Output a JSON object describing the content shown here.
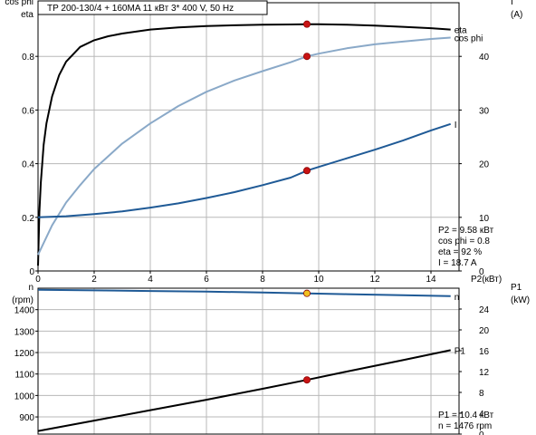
{
  "title": "TP 200-130/4 + 160MA    11 кВт   3* 400 V, 50 Hz",
  "colors": {
    "eta": "#000000",
    "cosphi": "#8aa9c8",
    "current": "#1f5a96",
    "speed": "#1f5a96",
    "p1": "#000000",
    "marker_red": "#c81414",
    "marker_yellow": "#f0c020",
    "grid": "#b8b8b8"
  },
  "chart_data": [
    {
      "type": "line",
      "name": "top",
      "x_unit_label": "P2(кВт)",
      "xlim": [
        0,
        15
      ],
      "x_ticks": [
        0,
        2,
        4,
        6,
        8,
        10,
        12,
        14
      ],
      "y_left_label_1": "cos phi",
      "y_left_label_2": "eta",
      "ylim_left": [
        0,
        1.0
      ],
      "y_left_ticks": [
        0,
        0.2,
        0.4,
        0.6,
        0.8
      ],
      "y_right_label_1": "I",
      "y_right_label_2": "(A)",
      "ylim_right": [
        0,
        50
      ],
      "y_right_ticks": [
        0,
        10,
        20,
        30,
        40
      ],
      "grid": true,
      "series": [
        {
          "name": "eta",
          "axis": "left",
          "x": [
            0,
            0.05,
            0.1,
            0.2,
            0.3,
            0.5,
            0.75,
            1,
            1.5,
            2,
            2.5,
            3,
            4,
            5,
            6,
            7,
            8,
            9,
            9.58,
            10,
            11,
            12,
            13,
            14,
            14.7
          ],
          "y": [
            0.02,
            0.22,
            0.33,
            0.47,
            0.55,
            0.65,
            0.73,
            0.78,
            0.835,
            0.86,
            0.875,
            0.885,
            0.9,
            0.908,
            0.913,
            0.916,
            0.918,
            0.919,
            0.92,
            0.92,
            0.918,
            0.915,
            0.91,
            0.905,
            0.9
          ]
        },
        {
          "name": "cos phi",
          "axis": "left",
          "x": [
            0,
            0.5,
            1,
            1.5,
            2,
            3,
            4,
            5,
            6,
            7,
            8,
            9,
            9.58,
            10,
            11,
            12,
            13,
            14,
            14.7
          ],
          "y": [
            0.06,
            0.17,
            0.255,
            0.32,
            0.38,
            0.475,
            0.55,
            0.615,
            0.668,
            0.71,
            0.745,
            0.778,
            0.8,
            0.81,
            0.83,
            0.845,
            0.855,
            0.865,
            0.87
          ]
        },
        {
          "name": "I",
          "axis": "right",
          "x": [
            0,
            1,
            2,
            3,
            4,
            5,
            6,
            7,
            8,
            9,
            9.58,
            10,
            11,
            12,
            13,
            14,
            14.7
          ],
          "y": [
            10.0,
            10.2,
            10.6,
            11.1,
            11.8,
            12.6,
            13.6,
            14.7,
            16.0,
            17.4,
            18.7,
            19.4,
            21.0,
            22.6,
            24.3,
            26.2,
            27.4
          ]
        }
      ],
      "markers": [
        {
          "series": "eta",
          "x": 9.58,
          "y": 0.92
        },
        {
          "series": "cos phi",
          "x": 9.58,
          "y": 0.8
        },
        {
          "series": "I",
          "x": 9.58,
          "y": 18.7
        }
      ],
      "annotation_lines": [
        "P2  = 9.58 кВт",
        "cos phi = 0.8",
        "eta  = 92 %",
        "I   = 18.7 A"
      ]
    },
    {
      "type": "line",
      "name": "bottom",
      "xlim": [
        0,
        15
      ],
      "y_left_label_1": "n",
      "y_left_label_2": "(rpm)",
      "ylim_left": [
        820,
        1500
      ],
      "y_left_ticks": [
        900,
        1000,
        1100,
        1200,
        1300,
        1400
      ],
      "y_right_label_1": "P1",
      "y_right_label_2": "(kW)",
      "ylim_right": [
        0,
        28
      ],
      "y_right_ticks": [
        0,
        4,
        8,
        12,
        16,
        20,
        24
      ],
      "grid": true,
      "series": [
        {
          "name": "n",
          "axis": "left",
          "x": [
            0,
            2,
            4,
            6,
            8,
            9.58,
            11,
            13,
            14.7
          ],
          "y": [
            1493,
            1490,
            1487,
            1484,
            1480,
            1476,
            1472,
            1467,
            1463
          ]
        },
        {
          "name": "P1",
          "axis": "right",
          "x": [
            0,
            2,
            4,
            6,
            8,
            9.58,
            11,
            13,
            14.7
          ],
          "y": [
            0.6,
            2.6,
            4.6,
            6.6,
            8.7,
            10.4,
            12.0,
            14.2,
            16.1
          ]
        }
      ],
      "markers": [
        {
          "series": "n",
          "x": 9.58,
          "y": 1476,
          "style": "yellow"
        },
        {
          "series": "P1",
          "x": 9.58,
          "y": 10.4
        }
      ],
      "annotation_lines": [
        "P1  = 10.4 кВт",
        "n   = 1476 rpm"
      ]
    }
  ]
}
